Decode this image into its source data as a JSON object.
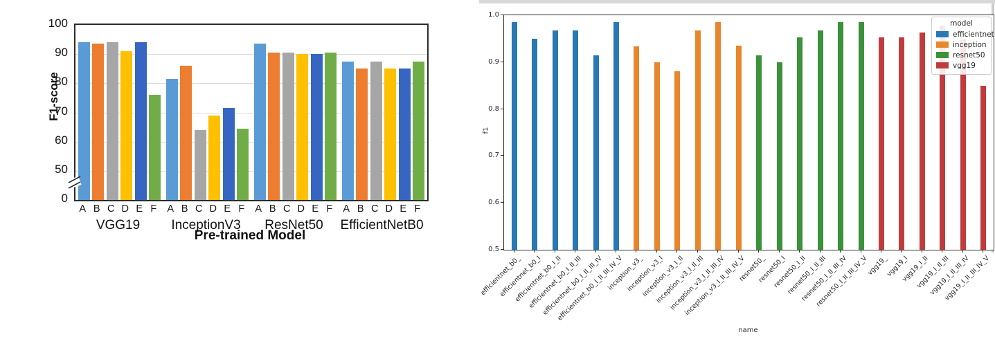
{
  "chart_data": [
    {
      "id": "left-figure",
      "type": "bar",
      "title": "",
      "xlabel": "Pre-trained Model",
      "ylabel": "F1-score",
      "ylim": [
        0,
        100
      ],
      "yticks": [
        0,
        50,
        60,
        70,
        80,
        90,
        100
      ],
      "axis_break_between": [
        0,
        50
      ],
      "grid": true,
      "bar_labels": [
        "A",
        "B",
        "C",
        "D",
        "E",
        "F"
      ],
      "bar_colors": [
        "#5B9BD5",
        "#ED7D31",
        "#A6A6A6",
        "#FFC000",
        "#3666C2",
        "#70AD47"
      ],
      "groups": [
        {
          "name": "VGG19",
          "values": [
            94.0,
            93.5,
            94.0,
            91.0,
            94.0,
            76.0
          ]
        },
        {
          "name": "InceptionV3",
          "values": [
            81.5,
            86.0,
            64.0,
            69.0,
            71.5,
            64.5
          ]
        },
        {
          "name": "ResNet50",
          "values": [
            93.5,
            90.5,
            90.5,
            90.0,
            90.0,
            90.5
          ]
        },
        {
          "name": "EfficientNetB0",
          "values": [
            87.5,
            85.0,
            87.5,
            85.0,
            85.0,
            87.5
          ]
        }
      ]
    },
    {
      "id": "right-figure",
      "type": "bar",
      "title": "",
      "xlabel": "name",
      "ylabel": "f1",
      "ylim": [
        0.5,
        1.0
      ],
      "ytick_labels": [
        "0.5",
        "0.6",
        "0.7",
        "0.8",
        "0.9",
        "1.0"
      ],
      "grid": false,
      "legend": {
        "title": "model",
        "position": "upper right",
        "entries": [
          {
            "label": "efficientnet",
            "color": "#2878B5"
          },
          {
            "label": "inception",
            "color": "#E7862B"
          },
          {
            "label": "resnet50",
            "color": "#3A923A"
          },
          {
            "label": "vgg19",
            "color": "#C03C3C"
          }
        ]
      },
      "model_colors": {
        "efficientnet": "#2878B5",
        "inception": "#E7862B",
        "resnet50": "#3A923A",
        "vgg19": "#C03C3C"
      },
      "bars": [
        {
          "name": "efficientnet_b0_",
          "model": "efficientnet",
          "value": 0.985
        },
        {
          "name": "efficientnet_b0_I",
          "model": "efficientnet",
          "value": 0.95
        },
        {
          "name": "efficientnet_b0_I_II",
          "model": "efficientnet",
          "value": 0.968
        },
        {
          "name": "efficientnet_b0_I_II_III",
          "model": "efficientnet",
          "value": 0.968
        },
        {
          "name": "efficientnet_b0_I_II_III_IV",
          "model": "efficientnet",
          "value": 0.915
        },
        {
          "name": "efficientnet_b0_I_II_III_IV_V",
          "model": "efficientnet",
          "value": 0.985
        },
        {
          "name": "inception_v3_",
          "model": "inception",
          "value": 0.933
        },
        {
          "name": "inception_v3_I",
          "model": "inception",
          "value": 0.9
        },
        {
          "name": "inception_v3_I_II",
          "model": "inception",
          "value": 0.88
        },
        {
          "name": "inception_v3_I_II_III",
          "model": "inception",
          "value": 0.967
        },
        {
          "name": "inception_v3_I_II_III_IV",
          "model": "inception",
          "value": 0.985
        },
        {
          "name": "inception_v3_I_II_III_IV_V",
          "model": "inception",
          "value": 0.935
        },
        {
          "name": "resnet50_",
          "model": "resnet50",
          "value": 0.915
        },
        {
          "name": "resnet50_I",
          "model": "resnet50",
          "value": 0.9
        },
        {
          "name": "resnet50_I_II",
          "model": "resnet50",
          "value": 0.953
        },
        {
          "name": "resnet50_I_II_III",
          "model": "resnet50",
          "value": 0.968
        },
        {
          "name": "resnet50_I_II_III_IV",
          "model": "resnet50",
          "value": 0.985
        },
        {
          "name": "resnet50_I_II_III_IV_V",
          "model": "resnet50",
          "value": 0.985
        },
        {
          "name": "vgg19_",
          "model": "vgg19",
          "value": 0.953
        },
        {
          "name": "vgg19_I",
          "model": "vgg19",
          "value": 0.953
        },
        {
          "name": "vgg19_I_II",
          "model": "vgg19",
          "value": 0.963
        },
        {
          "name": "vgg19_I_II_III",
          "model": "vgg19",
          "value": 0.978
        },
        {
          "name": "vgg19_I_II_III_IV",
          "model": "vgg19",
          "value": 0.948
        },
        {
          "name": "vgg19_I_II_III_IV_V",
          "model": "vgg19",
          "value": 0.85
        }
      ]
    }
  ]
}
